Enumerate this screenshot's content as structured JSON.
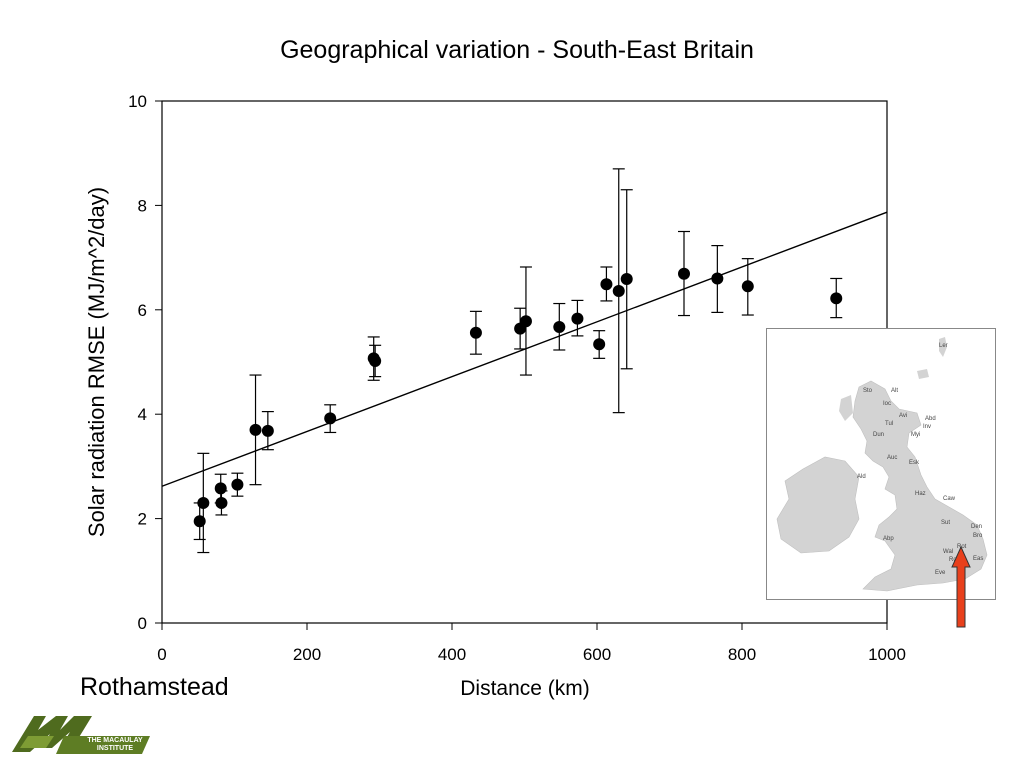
{
  "chart_data": {
    "type": "scatter",
    "title": "Geographical variation - South-East Britain",
    "xlabel": "Distance (km)",
    "ylabel": "Solar radiation RMSE (MJ/m^2/day)",
    "xlim": [
      0,
      1000
    ],
    "ylim": [
      0,
      10
    ],
    "x_ticks": [
      "0",
      "200",
      "400",
      "600",
      "800",
      "1000"
    ],
    "y_ticks": [
      "0",
      "2",
      "4",
      "6",
      "8",
      "10"
    ],
    "grid": false,
    "points": [
      {
        "x": 52,
        "y": 1.95,
        "low": 1.6,
        "high": 2.3
      },
      {
        "x": 57,
        "y": 2.3,
        "low": 1.35,
        "high": 3.25
      },
      {
        "x": 81,
        "y": 2.58,
        "low": 2.3,
        "high": 2.85
      },
      {
        "x": 82,
        "y": 2.3,
        "low": 2.07,
        "high": 2.53
      },
      {
        "x": 104,
        "y": 2.65,
        "low": 2.43,
        "high": 2.87
      },
      {
        "x": 129,
        "y": 3.7,
        "low": 2.65,
        "high": 4.75
      },
      {
        "x": 146,
        "y": 3.68,
        "low": 3.32,
        "high": 4.05
      },
      {
        "x": 232,
        "y": 3.92,
        "low": 3.65,
        "high": 4.18
      },
      {
        "x": 292,
        "y": 5.07,
        "low": 4.65,
        "high": 5.48
      },
      {
        "x": 294,
        "y": 5.02,
        "low": 4.72,
        "high": 5.32
      },
      {
        "x": 433,
        "y": 5.56,
        "low": 5.15,
        "high": 5.97
      },
      {
        "x": 494,
        "y": 5.64,
        "low": 5.25,
        "high": 6.03
      },
      {
        "x": 502,
        "y": 5.78,
        "low": 4.75,
        "high": 6.82
      },
      {
        "x": 548,
        "y": 5.67,
        "low": 5.23,
        "high": 6.12
      },
      {
        "x": 573,
        "y": 5.83,
        "low": 5.5,
        "high": 6.18
      },
      {
        "x": 603,
        "y": 5.34,
        "low": 5.07,
        "high": 5.6
      },
      {
        "x": 613,
        "y": 6.49,
        "low": 6.17,
        "high": 6.82
      },
      {
        "x": 630,
        "y": 6.36,
        "low": 4.03,
        "high": 8.7
      },
      {
        "x": 641,
        "y": 6.59,
        "low": 4.87,
        "high": 8.3
      },
      {
        "x": 720,
        "y": 6.69,
        "low": 5.89,
        "high": 7.5
      },
      {
        "x": 766,
        "y": 6.6,
        "low": 5.95,
        "high": 7.23
      },
      {
        "x": 808,
        "y": 6.45,
        "low": 5.9,
        "high": 6.98
      },
      {
        "x": 930,
        "y": 6.22,
        "low": 5.85,
        "high": 6.6
      }
    ],
    "trendline": {
      "x": [
        0,
        1000
      ],
      "y": [
        2.62,
        7.87
      ]
    }
  },
  "annotation": "Rothamstead",
  "logo": {
    "line1": "THE MACAULAY",
    "line2": "INSTITUTE"
  },
  "map": {
    "station_labels": [
      "Ler",
      "Sto",
      "Alt",
      "Ioc",
      "Avi",
      "Abd",
      "Tul",
      "Inv",
      "Dun",
      "Myi",
      "Auc",
      "Esk",
      "Ald",
      "Haz",
      "Caw",
      "Sut",
      "Den",
      "Bro",
      "Abp",
      "Rot",
      "Wal",
      "Ro",
      "Eas",
      "Eve"
    ],
    "arrow_color": "#e8401c"
  }
}
